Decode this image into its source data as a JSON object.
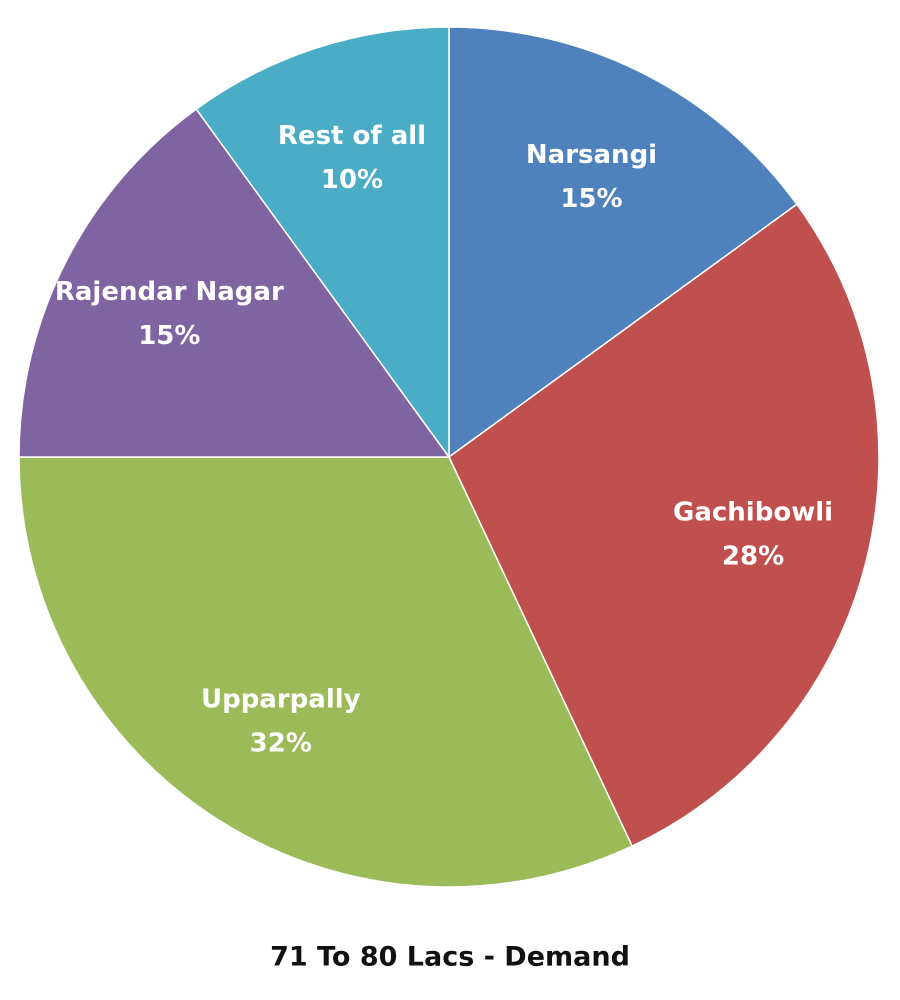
{
  "chart_data": {
    "type": "pie",
    "title": "71 To 80 Lacs - Demand",
    "categories": [
      "Narsangi",
      "Gachibowli",
      "Upparpally",
      "Rajendar Nagar",
      "Rest of all"
    ],
    "values": [
      15,
      28,
      32,
      15,
      10
    ],
    "value_labels": [
      "15%",
      "28%",
      "32%",
      "15%",
      "10%"
    ],
    "colors": [
      "#4f81bd",
      "#c0504d",
      "#9bbb59",
      "#8064a2",
      "#4bacc6"
    ]
  }
}
